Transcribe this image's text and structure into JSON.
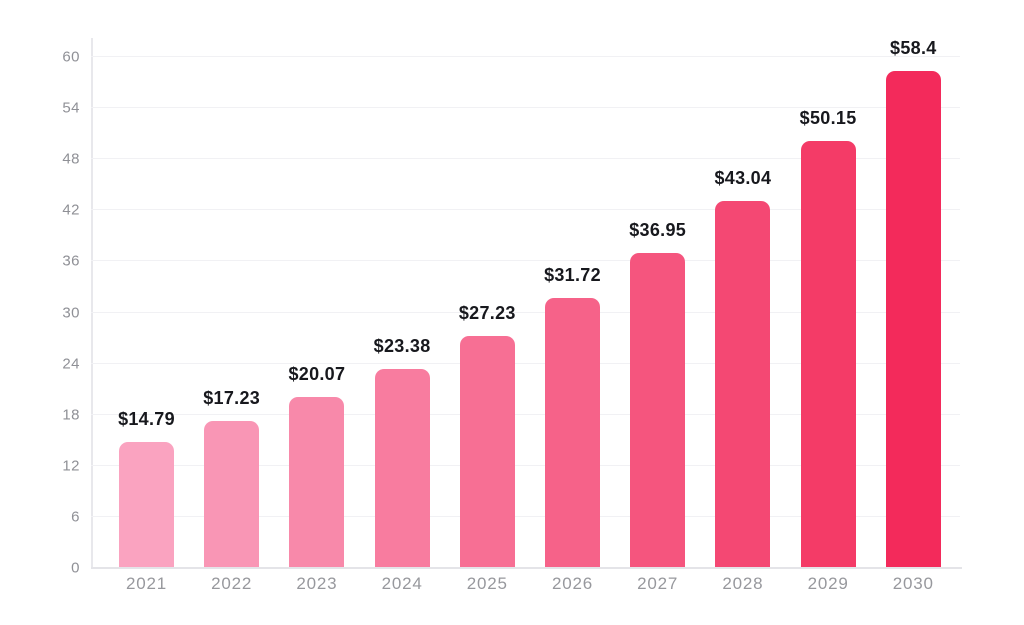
{
  "chart_data": {
    "type": "bar",
    "title": "",
    "xlabel": "",
    "ylabel": "",
    "categories": [
      "2021",
      "2022",
      "2023",
      "2024",
      "2025",
      "2026",
      "2027",
      "2028",
      "2029",
      "2030"
    ],
    "values": [
      14.79,
      17.23,
      20.07,
      23.38,
      27.23,
      31.72,
      36.95,
      43.04,
      50.15,
      58.4
    ],
    "value_labels": [
      "$14.79",
      "$17.23",
      "$20.07",
      "$23.38",
      "$27.23",
      "$31.72",
      "$36.95",
      "$43.04",
      "$50.15",
      "$58.4"
    ],
    "bar_colors": [
      "#FAA3C0",
      "#F996B5",
      "#F889AA",
      "#F87C9F",
      "#F76F94",
      "#F66289",
      "#F5557E",
      "#F44873",
      "#F43B67",
      "#F32A5B"
    ],
    "ylim": [
      0,
      60
    ],
    "yticks": [
      0,
      6,
      12,
      18,
      24,
      30,
      36,
      42,
      48,
      54,
      60
    ],
    "grid": true,
    "legend": false,
    "style": {
      "background": "#ffffff",
      "grid_color": "#f1f1f4",
      "axis_color": "#e4e4e8",
      "tick_text_color": "#8f9096",
      "category_text_color": "#97989d",
      "value_text_color": "#17181d"
    }
  }
}
